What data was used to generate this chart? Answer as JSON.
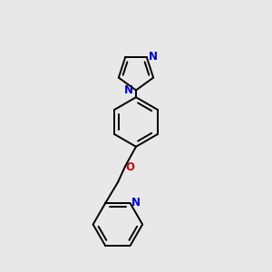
{
  "bg_color": "#e8e8e8",
  "bond_color": "#000000",
  "N_color": "#0000cc",
  "O_color": "#cc0000",
  "lw": 1.4,
  "fs": 8.5,
  "figsize": [
    3.0,
    3.0
  ],
  "dpi": 100,
  "xlim": [
    0.15,
    0.85
  ],
  "ylim": [
    0.02,
    0.98
  ]
}
